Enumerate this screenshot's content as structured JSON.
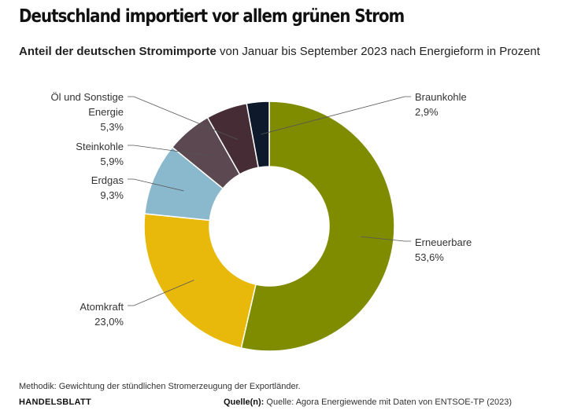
{
  "headline": "Deutschland importiert vor allem grünen Strom",
  "subtitle_bold": "Anteil der deutschen Stromimporte",
  "subtitle_rest": " von Januar bis September 2023 nach Energieform in Prozent",
  "chart_data": {
    "type": "pie",
    "variant": "donut",
    "slices": [
      {
        "label_lines": [
          "Erneuerbare"
        ],
        "value": 53.6,
        "value_text": "53,6%",
        "color": "#808c00"
      },
      {
        "label_lines": [
          "Atomkraft"
        ],
        "value": 23.0,
        "value_text": "23,0%",
        "color": "#e8b80a"
      },
      {
        "label_lines": [
          "Erdgas"
        ],
        "value": 9.3,
        "value_text": "9,3%",
        "color": "#8ab8cc"
      },
      {
        "label_lines": [
          "Steinkohle"
        ],
        "value": 5.9,
        "value_text": "5,9%",
        "color": "#5b4850"
      },
      {
        "label_lines": [
          "Öl und Sonstige",
          "Energie"
        ],
        "value": 5.3,
        "value_text": "5,3%",
        "color": "#452c35"
      },
      {
        "label_lines": [
          "Braunkohle"
        ],
        "value": 2.9,
        "value_text": "2,9%",
        "color": "#0e1a2b"
      }
    ]
  },
  "footer": {
    "method": "Methodik: Gewichtung der stündlichen Stromerzeugung der Exportländer.",
    "brand": "HANDELSBLATT",
    "source_label": "Quelle(n):",
    "source_text": " Quelle: Agora Energiewende mit Daten von ENTSOE-TP (2023)"
  }
}
